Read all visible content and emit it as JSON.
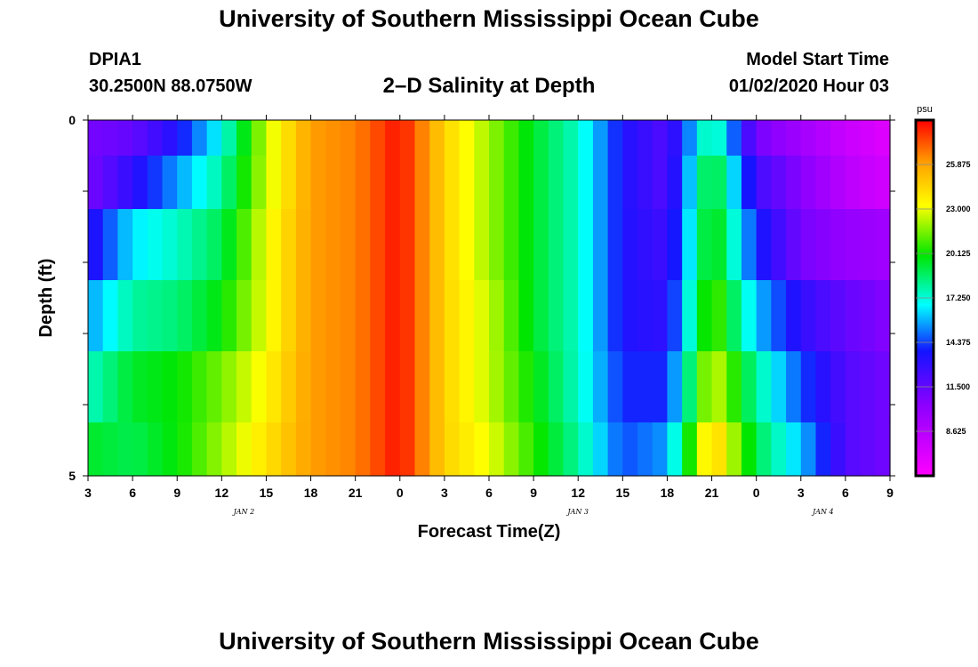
{
  "header": {
    "title": "University of Southern Mississippi Ocean Cube",
    "station_id": "DPIA1",
    "station_coords": "30.2500N 88.0750W",
    "chart_title": "2–D Salinity at Depth",
    "start_label": "Model Start Time",
    "start_value": "01/02/2020 Hour 03"
  },
  "footer": {
    "title": "University of Southern Mississippi Ocean Cube"
  },
  "chart_data": {
    "type": "heatmap",
    "title": "2–D Salinity at Depth",
    "xlabel": "Forecast Time(Z)",
    "ylabel": "Depth (ft)",
    "x_tick_labels": [
      "3",
      "6",
      "9",
      "12",
      "15",
      "18",
      "21",
      "0",
      "3",
      "6",
      "9",
      "12",
      "15",
      "18",
      "21",
      "0",
      "3",
      "6",
      "9"
    ],
    "x_day_labels": [
      {
        "label": "JAN 2",
        "tick_index": 3.5
      },
      {
        "label": "JAN 3",
        "tick_index": 11
      },
      {
        "label": "JAN 4",
        "tick_index": 16.5
      }
    ],
    "x_hours": [
      3,
      57
    ],
    "y_tick_labels": [
      "0",
      "5"
    ],
    "ylim": [
      0,
      5
    ],
    "y_reversed": true,
    "layer_depths_ft": [
      0.25,
      0.75,
      1.75,
      2.75,
      3.75,
      4.75
    ],
    "colorbar": {
      "unit": "psu",
      "range": [
        5.75,
        28.75
      ],
      "ticks": [
        8.625,
        11.5,
        14.375,
        17.25,
        20.125,
        23.0,
        25.875
      ],
      "tick_labels": [
        "8.625",
        "11.500",
        "14.375",
        "17.250",
        "20.125",
        "23.000",
        "25.875"
      ]
    },
    "series": [
      {
        "depth_ft": 0.25,
        "hours": [
          3,
          6,
          9,
          12,
          15,
          18,
          21,
          24,
          27,
          30,
          33,
          36,
          39,
          42,
          45,
          48,
          51,
          54,
          57
        ],
        "values": [
          11.0,
          11.5,
          13.5,
          17.0,
          22.5,
          26.0,
          26.5,
          28.5,
          24.5,
          22.0,
          19.5,
          17.5,
          13.5,
          12.0,
          18.5,
          11.0,
          9.5,
          8.0,
          7.0
        ]
      },
      {
        "depth_ft": 0.75,
        "hours": [
          3,
          6,
          9,
          12,
          15,
          18,
          21,
          24,
          27,
          30,
          33,
          36,
          39,
          42,
          45,
          48,
          51,
          54,
          57
        ],
        "values": [
          11.0,
          13.0,
          15.5,
          18.0,
          22.5,
          26.0,
          26.5,
          28.5,
          24.5,
          22.0,
          19.5,
          17.5,
          13.5,
          12.0,
          20.0,
          12.5,
          10.5,
          8.5,
          7.5
        ]
      },
      {
        "depth_ft": 1.75,
        "hours": [
          3,
          6,
          9,
          12,
          15,
          18,
          21,
          24,
          27,
          30,
          33,
          36,
          39,
          42,
          45,
          48,
          51,
          54,
          57
        ],
        "values": [
          13.0,
          16.5,
          17.5,
          19.0,
          23.0,
          26.0,
          26.5,
          28.5,
          24.5,
          22.0,
          19.5,
          17.5,
          13.5,
          12.5,
          20.5,
          14.0,
          11.0,
          10.0,
          9.5
        ]
      },
      {
        "depth_ft": 2.75,
        "hours": [
          3,
          6,
          9,
          12,
          15,
          18,
          21,
          24,
          27,
          30,
          33,
          36,
          39,
          42,
          45,
          48,
          51,
          54,
          57
        ],
        "values": [
          15.5,
          18.0,
          18.5,
          20.0,
          23.0,
          26.0,
          26.5,
          28.5,
          24.5,
          22.5,
          19.5,
          17.5,
          13.5,
          13.0,
          21.5,
          16.0,
          13.0,
          11.5,
          10.5
        ]
      },
      {
        "depth_ft": 3.75,
        "hours": [
          3,
          6,
          9,
          12,
          15,
          18,
          21,
          24,
          27,
          30,
          33,
          36,
          39,
          42,
          45,
          48,
          51,
          54,
          57
        ],
        "values": [
          17.5,
          19.5,
          20.0,
          21.5,
          23.5,
          26.0,
          26.5,
          28.5,
          24.5,
          22.5,
          20.0,
          17.5,
          14.0,
          14.0,
          23.0,
          18.0,
          14.5,
          12.0,
          11.0
        ]
      },
      {
        "depth_ft": 4.75,
        "hours": [
          3,
          6,
          9,
          12,
          15,
          18,
          21,
          24,
          27,
          30,
          33,
          36,
          39,
          42,
          45,
          48,
          51,
          54,
          57
        ],
        "values": [
          19.5,
          19.0,
          20.0,
          22.0,
          24.0,
          26.0,
          26.5,
          28.5,
          24.5,
          23.0,
          20.5,
          18.0,
          14.5,
          15.5,
          25.0,
          19.0,
          16.0,
          12.0,
          11.0
        ]
      }
    ]
  }
}
